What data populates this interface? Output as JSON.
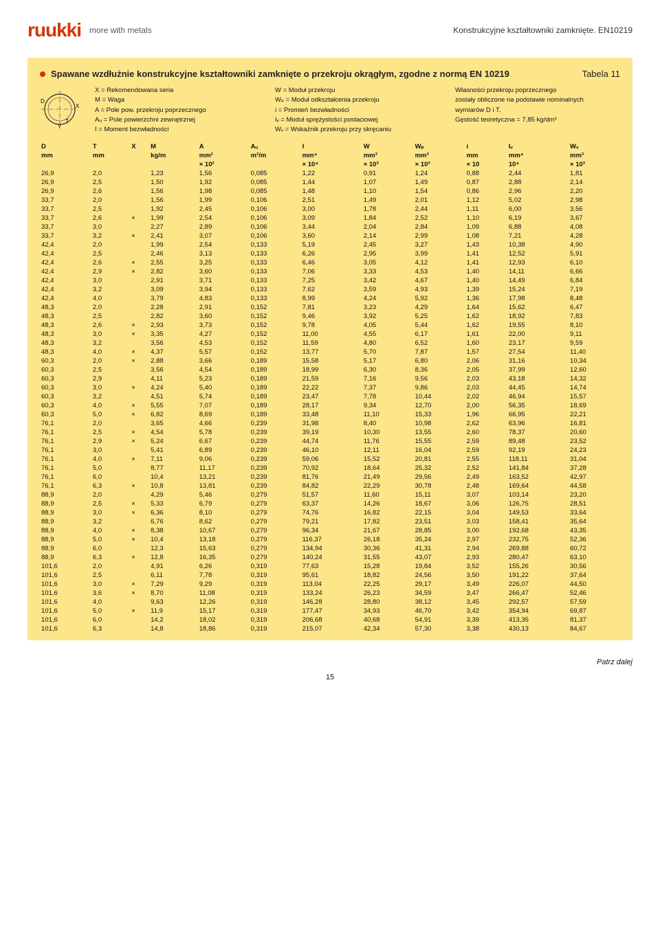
{
  "header": {
    "logo_text": "ruukki",
    "slogan": "more with metals",
    "doc_title": "Konstrukcyjne kształtowniki zamknięte. EN10219"
  },
  "title": "Spawane wzdłużnie konstrukcyjne kształtowniki zamknięte o przekroju okrągłym, zgodne z normą EN 10219",
  "table_label": "Tabela 11",
  "diagram": {
    "labels": [
      "D",
      "X",
      "T",
      "Y"
    ],
    "stroke": "#333"
  },
  "legend": [
    [
      "X = Rekomendowana seria",
      "M = Waga",
      "A = Pole pow. przekroju poprzecznego",
      "Aᵤ = Pole powierzchni zewnętrznej",
      "I = Moment bezwładności"
    ],
    [
      "W = Moduł przekroju",
      "Wₚ = Moduł odkształcenia przekroju",
      "i = Promień bezwładności",
      "Iᵥ = Moduł sprężystości postaciowej",
      "Wᵥ = Wskaźnik przekroju przy skręcaniu"
    ],
    [
      "Własności przekroju poprzecznego",
      "zostały obliczone na podstawie nominalnych",
      "wymiarów D i T.",
      "Gęstość teoretyczna = 7,85 kg/dm³"
    ]
  ],
  "columns": {
    "sym": [
      "D",
      "T",
      "X",
      "M",
      "A",
      "Aᵤ",
      "I",
      "W",
      "Wₚ",
      "i",
      "Iᵥ",
      "Wᵥ"
    ],
    "unit": [
      "mm",
      "mm",
      "",
      "kg/m",
      "mm²",
      "m²/m",
      "mm⁴",
      "mm³",
      "mm³",
      "mm",
      "mm⁴",
      "mm³"
    ],
    "mult": [
      "",
      "",
      "",
      "",
      "× 10²",
      "",
      "× 10⁴",
      "× 10³",
      "× 10³",
      "× 10",
      "10⁴",
      "× 10³"
    ]
  },
  "rows": [
    [
      "26,9",
      "2,0",
      "",
      "1,23",
      "1,56",
      "0,085",
      "1,22",
      "0,91",
      "1,24",
      "0,88",
      "2,44",
      "1,81"
    ],
    [
      "26,9",
      "2,5",
      "",
      "1,50",
      "1,92",
      "0,085",
      "1,44",
      "1,07",
      "1,49",
      "0,87",
      "2,88",
      "2,14"
    ],
    [
      "26,9",
      "2,6",
      "",
      "1,56",
      "1,98",
      "0,085",
      "1,48",
      "1,10",
      "1,54",
      "0,86",
      "2,96",
      "2,20"
    ],
    [
      "33,7",
      "2,0",
      "",
      "1,56",
      "1,99",
      "0,106",
      "2,51",
      "1,49",
      "2,01",
      "1,12",
      "5,02",
      "2,98"
    ],
    [
      "33,7",
      "2,5",
      "",
      "1,92",
      "2,45",
      "0,106",
      "3,00",
      "1,78",
      "2,44",
      "1,11",
      "6,00",
      "3,56"
    ],
    [
      "33,7",
      "2,6",
      "×",
      "1,99",
      "2,54",
      "0,106",
      "3,09",
      "1,84",
      "2,52",
      "1,10",
      "6,19",
      "3,67"
    ],
    [
      "33,7",
      "3,0",
      "",
      "2,27",
      "2,89",
      "0,106",
      "3,44",
      "2,04",
      "2,84",
      "1,09",
      "6,88",
      "4,08"
    ],
    [
      "33,7",
      "3,2",
      "×",
      "2,41",
      "3,07",
      "0,106",
      "3,60",
      "2,14",
      "2,99",
      "1,08",
      "7,21",
      "4,28"
    ],
    [
      "42,4",
      "2,0",
      "",
      "1,99",
      "2,54",
      "0,133",
      "5,19",
      "2,45",
      "3,27",
      "1,43",
      "10,38",
      "4,90"
    ],
    [
      "42,4",
      "2,5",
      "",
      "2,46",
      "3,13",
      "0,133",
      "6,26",
      "2,95",
      "3,99",
      "1,41",
      "12,52",
      "5,91"
    ],
    [
      "42,4",
      "2,6",
      "×",
      "2,55",
      "3,25",
      "0,133",
      "6,46",
      "3,05",
      "4,12",
      "1,41",
      "12,93",
      "6,10"
    ],
    [
      "42,4",
      "2,9",
      "×",
      "2,82",
      "3,60",
      "0,133",
      "7,06",
      "3,33",
      "4,53",
      "1,40",
      "14,11",
      "6,66"
    ],
    [
      "42,4",
      "3,0",
      "",
      "2,91",
      "3,71",
      "0,133",
      "7,25",
      "3,42",
      "4,67",
      "1,40",
      "14,49",
      "6,84"
    ],
    [
      "42,4",
      "3,2",
      "",
      "3,09",
      "3,94",
      "0,133",
      "7,62",
      "3,59",
      "4,93",
      "1,39",
      "15,24",
      "7,19"
    ],
    [
      "42,4",
      "4,0",
      "",
      "3,79",
      "4,83",
      "0,133",
      "8,99",
      "4,24",
      "5,92",
      "1,36",
      "17,98",
      "8,48"
    ],
    [
      "48,3",
      "2,0",
      "",
      "2,28",
      "2,91",
      "0,152",
      "7,81",
      "3,23",
      "4,29",
      "1,64",
      "15,62",
      "6,47"
    ],
    [
      "48,3",
      "2,5",
      "",
      "2,82",
      "3,60",
      "0,152",
      "9,46",
      "3,92",
      "5,25",
      "1,62",
      "18,92",
      "7,83"
    ],
    [
      "48,3",
      "2,6",
      "×",
      "2,93",
      "3,73",
      "0,152",
      "9,78",
      "4,05",
      "5,44",
      "1,62",
      "19,55",
      "8,10"
    ],
    [
      "48,3",
      "3,0",
      "×",
      "3,35",
      "4,27",
      "0,152",
      "11,00",
      "4,55",
      "6,17",
      "1,61",
      "22,00",
      "9,11"
    ],
    [
      "48,3",
      "3,2",
      "",
      "3,56",
      "4,53",
      "0,152",
      "11,59",
      "4,80",
      "6,52",
      "1,60",
      "23,17",
      "9,59"
    ],
    [
      "48,3",
      "4,0",
      "×",
      "4,37",
      "5,57",
      "0,152",
      "13,77",
      "5,70",
      "7,87",
      "1,57",
      "27,54",
      "11,40"
    ],
    [
      "60,3",
      "2,0",
      "×",
      "2,88",
      "3,66",
      "0,189",
      "15,58",
      "5,17",
      "6,80",
      "2,06",
      "31,16",
      "10,34"
    ],
    [
      "60,3",
      "2,5",
      "",
      "3,56",
      "4,54",
      "0,189",
      "18,99",
      "6,30",
      "8,36",
      "2,05",
      "37,99",
      "12,60"
    ],
    [
      "60,3",
      "2,9",
      "",
      "4,11",
      "5,23",
      "0,189",
      "21,59",
      "7,16",
      "9,56",
      "2,03",
      "43,18",
      "14,32"
    ],
    [
      "60,3",
      "3,0",
      "×",
      "4,24",
      "5,40",
      "0,189",
      "22,22",
      "7,37",
      "9,86",
      "2,03",
      "44,45",
      "14,74"
    ],
    [
      "60,3",
      "3,2",
      "",
      "4,51",
      "5,74",
      "0,189",
      "23,47",
      "7,78",
      "10,44",
      "2,02",
      "46,94",
      "15,57"
    ],
    [
      "60,3",
      "4,0",
      "×",
      "5,55",
      "7,07",
      "0,189",
      "28,17",
      "9,34",
      "12,70",
      "2,00",
      "56,35",
      "18,69"
    ],
    [
      "60,3",
      "5,0",
      "×",
      "6,82",
      "8,69",
      "0,189",
      "33,48",
      "11,10",
      "15,33",
      "1,96",
      "66,95",
      "22,21"
    ],
    [
      "76,1",
      "2,0",
      "",
      "3,65",
      "4,66",
      "0,239",
      "31,98",
      "8,40",
      "10,98",
      "2,62",
      "63,96",
      "16,81"
    ],
    [
      "76,1",
      "2,5",
      "×",
      "4,54",
      "5,78",
      "0,239",
      "39,19",
      "10,30",
      "13,55",
      "2,60",
      "78,37",
      "20,60"
    ],
    [
      "76,1",
      "2,9",
      "×",
      "5,24",
      "6,67",
      "0,239",
      "44,74",
      "11,76",
      "15,55",
      "2,59",
      "89,48",
      "23,52"
    ],
    [
      "76,1",
      "3,0",
      "",
      "5,41",
      "6,89",
      "0,239",
      "46,10",
      "12,11",
      "16,04",
      "2,59",
      "92,19",
      "24,23"
    ],
    [
      "76,1",
      "4,0",
      "×",
      "7,11",
      "9,06",
      "0,239",
      "59,06",
      "15,52",
      "20,81",
      "2,55",
      "118,11",
      "31,04"
    ],
    [
      "76,1",
      "5,0",
      "",
      "8,77",
      "11,17",
      "0,239",
      "70,92",
      "18,64",
      "25,32",
      "2,52",
      "141,84",
      "37,28"
    ],
    [
      "76,1",
      "6,0",
      "",
      "10,4",
      "13,21",
      "0,239",
      "81,76",
      "21,49",
      "29,56",
      "2,49",
      "163,52",
      "42,97"
    ],
    [
      "76,1",
      "6,3",
      "×",
      "10,8",
      "13,81",
      "0,239",
      "84,82",
      "22,29",
      "30,78",
      "2,48",
      "169,64",
      "44,58"
    ],
    [
      "88,9",
      "2,0",
      "",
      "4,29",
      "5,46",
      "0,279",
      "51,57",
      "11,60",
      "15,11",
      "3,07",
      "103,14",
      "23,20"
    ],
    [
      "88,9",
      "2,5",
      "×",
      "5,33",
      "6,79",
      "0,279",
      "63,37",
      "14,26",
      "18,67",
      "3,06",
      "126,75",
      "28,51"
    ],
    [
      "88,9",
      "3,0",
      "×",
      "6,36",
      "8,10",
      "0,279",
      "74,76",
      "16,82",
      "22,15",
      "3,04",
      "149,53",
      "33,64"
    ],
    [
      "88,9",
      "3,2",
      "",
      "6,76",
      "8,62",
      "0,279",
      "79,21",
      "17,82",
      "23,51",
      "3,03",
      "158,41",
      "35,64"
    ],
    [
      "88,9",
      "4,0",
      "×",
      "8,38",
      "10,67",
      "0,279",
      "96,34",
      "21,67",
      "28,85",
      "3,00",
      "192,68",
      "43,35"
    ],
    [
      "88,9",
      "5,0",
      "×",
      "10,4",
      "13,18",
      "0,279",
      "116,37",
      "26,18",
      "35,24",
      "2,97",
      "232,75",
      "52,36"
    ],
    [
      "88,9",
      "6,0",
      "",
      "12,3",
      "15,63",
      "0,279",
      "134,94",
      "30,36",
      "41,31",
      "2,94",
      "269,88",
      "60,72"
    ],
    [
      "88,9",
      "6,3",
      "×",
      "12,8",
      "16,35",
      "0,279",
      "140,24",
      "31,55",
      "43,07",
      "2,93",
      "280,47",
      "63,10"
    ],
    [
      "101,6",
      "2,0",
      "",
      "4,91",
      "6,26",
      "0,319",
      "77,63",
      "15,28",
      "19,84",
      "3,52",
      "155,26",
      "30,56"
    ],
    [
      "101,6",
      "2,5",
      "",
      "6,11",
      "7,78",
      "0,319",
      "95,61",
      "18,82",
      "24,56",
      "3,50",
      "191,22",
      "37,64"
    ],
    [
      "101,6",
      "3,0",
      "×",
      "7,29",
      "9,29",
      "0,319",
      "113,04",
      "22,25",
      "29,17",
      "3,49",
      "226,07",
      "44,50"
    ],
    [
      "101,6",
      "3,6",
      "×",
      "8,70",
      "11,08",
      "0,319",
      "133,24",
      "26,23",
      "34,59",
      "3,47",
      "266,47",
      "52,46"
    ],
    [
      "101,6",
      "4,0",
      "",
      "9,63",
      "12,26",
      "0,319",
      "146,28",
      "28,80",
      "38,12",
      "3,45",
      "292,57",
      "57,59"
    ],
    [
      "101,6",
      "5,0",
      "×",
      "11,9",
      "15,17",
      "0,319",
      "177,47",
      "34,93",
      "46,70",
      "3,42",
      "354,94",
      "69,87"
    ],
    [
      "101,6",
      "6,0",
      "",
      "14,2",
      "18,02",
      "0,319",
      "206,68",
      "40,68",
      "54,91",
      "3,39",
      "413,35",
      "81,37"
    ],
    [
      "101,6",
      "6,3",
      "",
      "14,8",
      "18,86",
      "0,319",
      "215,07",
      "42,34",
      "57,30",
      "3,38",
      "430,13",
      "84,67"
    ]
  ],
  "footer": {
    "note": "Patrz dalej",
    "page": "15"
  },
  "style": {
    "band_bg": "#fde68a",
    "accent": "#d43600",
    "text": "#111",
    "font_body_pt": 10,
    "font_title_pt": 13
  }
}
